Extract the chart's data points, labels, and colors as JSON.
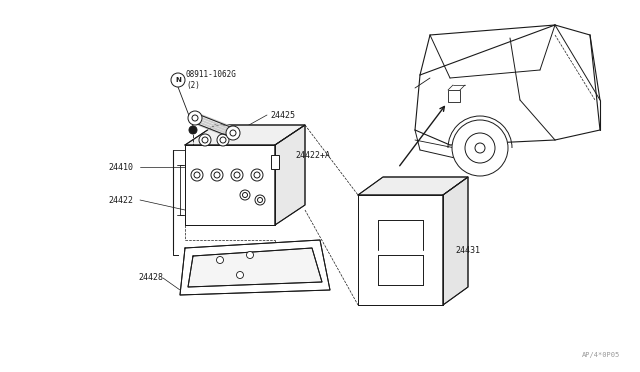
{
  "bg_color": "#ffffff",
  "line_color": "#1a1a1a",
  "fig_width": 6.4,
  "fig_height": 3.72,
  "dpi": 100,
  "watermark": "AP/4*0P05",
  "parts": {
    "nut_label": "08911-1062G\n(2)",
    "part_24410": "24410",
    "part_24422": "24422",
    "part_24425": "24425",
    "part_24422A": "24422+A",
    "part_24428": "24428",
    "part_24431": "24431"
  }
}
